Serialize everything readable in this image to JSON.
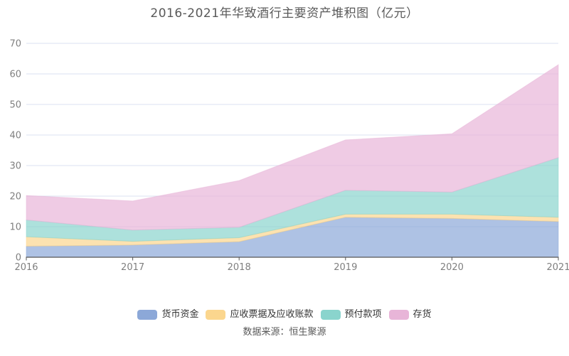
{
  "chart_data": {
    "type": "area",
    "stacked": true,
    "title": "2016-2021年华致酒行主要资产堆积图（亿元）",
    "source": "数据来源：恒生聚源",
    "categories": [
      "2016",
      "2017",
      "2018",
      "2019",
      "2020",
      "2021"
    ],
    "series": [
      {
        "name": "货币资金",
        "color": "#8CA8D8",
        "values": [
          3.6,
          4.0,
          5.1,
          13.1,
          12.7,
          11.7
        ]
      },
      {
        "name": "应收票据及应收账款",
        "color": "#FBD68E",
        "values": [
          3.1,
          1.2,
          1.3,
          1.0,
          1.4,
          1.4
        ]
      },
      {
        "name": "预付款项",
        "color": "#8AD4CD",
        "values": [
          5.5,
          3.7,
          3.4,
          7.8,
          7.2,
          19.5
        ]
      },
      {
        "name": "存货",
        "color": "#E8B5D8",
        "values": [
          8.0,
          9.5,
          15.3,
          16.5,
          19.1,
          30.4
        ]
      }
    ],
    "ylim": [
      0,
      70
    ],
    "yticks": [
      0,
      10,
      20,
      30,
      40,
      50,
      60,
      70
    ],
    "grid": true,
    "legend_position": "bottom",
    "fill_opacity": 0.7,
    "colors": {
      "grid": "#dbe1f1",
      "axis": "#565656",
      "tick_label": "#7f7f7f",
      "title_text": "#595959",
      "legend_text": "#333333",
      "source_text": "#595959"
    }
  }
}
